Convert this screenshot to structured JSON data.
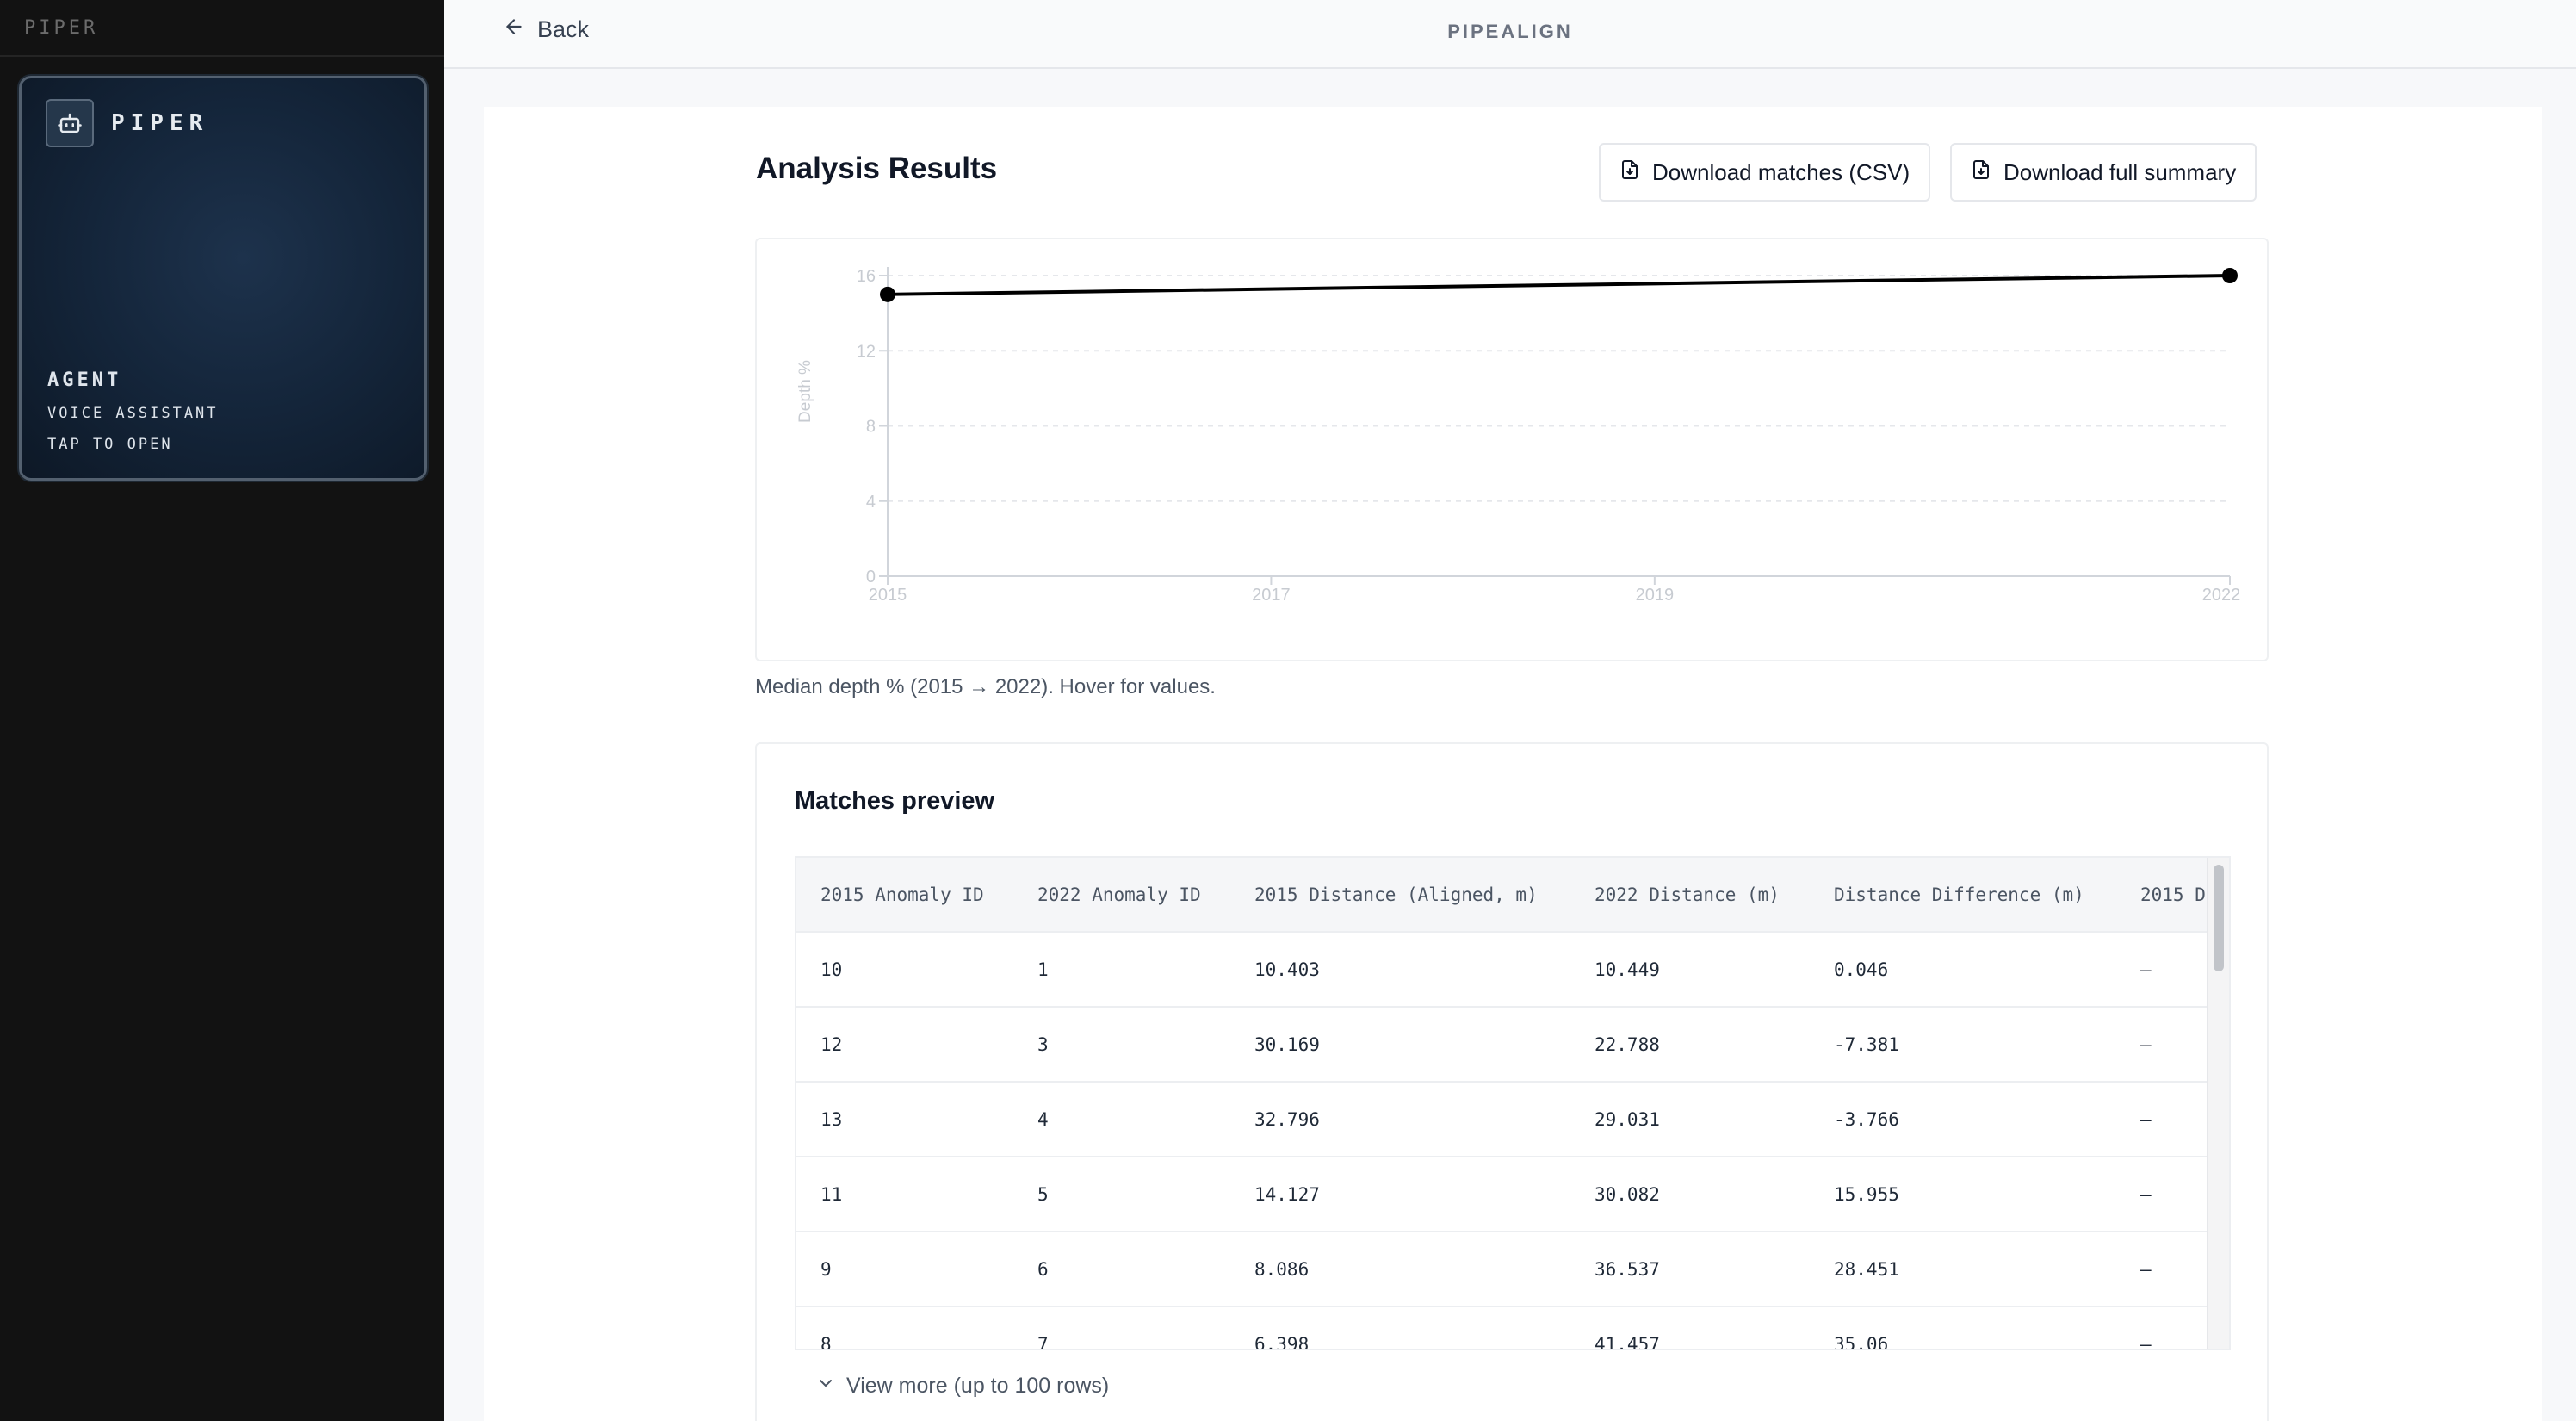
{
  "sidebar": {
    "brand": "PIPER",
    "agent_card": {
      "title": "PIPER",
      "line1": "AGENT",
      "line2": "VOICE ASSISTANT",
      "line3": "TAP TO OPEN"
    }
  },
  "topbar": {
    "back_label": "Back",
    "app_title": "PIPEALIGN"
  },
  "results": {
    "title": "Analysis Results",
    "download_csv_label": "Download matches (CSV)",
    "download_summary_label": "Download full summary",
    "chart_caption": "Median depth % (2015 → 2022). Hover for values."
  },
  "chart_data": {
    "type": "line",
    "x": [
      2015,
      2022
    ],
    "xticks": [
      "2015",
      "2017",
      "2019",
      "2022"
    ],
    "xtick_values": [
      2015,
      2017,
      2019,
      2022
    ],
    "series": [
      {
        "values": [
          15,
          16
        ]
      }
    ],
    "yticks": [
      "0",
      "4",
      "8",
      "12",
      "16"
    ],
    "ylabel": "Depth %",
    "xlim": [
      2015,
      2022
    ],
    "ylim": [
      0,
      16
    ],
    "grid": true,
    "line_color": "#000000",
    "grid_color": "#e5e7eb"
  },
  "matches": {
    "title": "Matches preview",
    "columns": [
      "2015 Anomaly ID",
      "2022 Anomaly ID",
      "2015 Distance (Aligned, m)",
      "2022 Distance (m)",
      "Distance Difference (m)",
      "2015 D"
    ],
    "rows": [
      [
        "10",
        "1",
        "10.403",
        "10.449",
        "0.046",
        "–"
      ],
      [
        "12",
        "3",
        "30.169",
        "22.788",
        "-7.381",
        "–"
      ],
      [
        "13",
        "4",
        "32.796",
        "29.031",
        "-3.766",
        "–"
      ],
      [
        "11",
        "5",
        "14.127",
        "30.082",
        "15.955",
        "–"
      ],
      [
        "9",
        "6",
        "8.086",
        "36.537",
        "28.451",
        "–"
      ],
      [
        "8",
        "7",
        "6.398",
        "41.457",
        "35.06",
        "–"
      ]
    ],
    "view_more_label": "View more (up to 100 rows)"
  },
  "icons": {
    "back": "arrow-left-icon",
    "agent": "robot-icon",
    "download": "file-download-icon",
    "view_more": "chevron-down-icon"
  }
}
